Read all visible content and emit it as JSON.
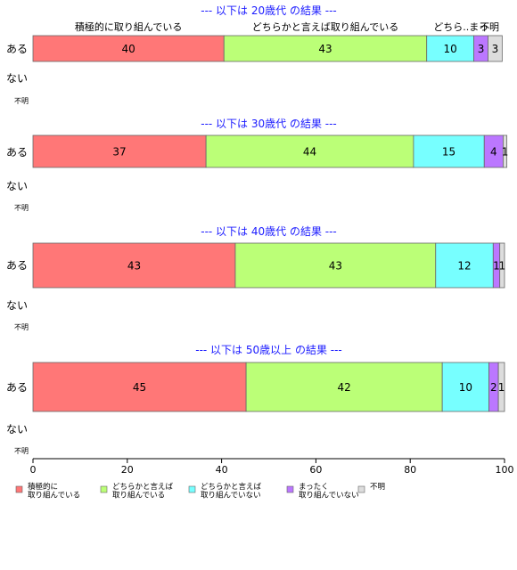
{
  "chart_data": {
    "type": "bar",
    "orientation": "horizontal",
    "stacked": true,
    "xlim": [
      0,
      100
    ],
    "xticks": [
      0,
      20,
      40,
      60,
      80,
      100
    ],
    "top_category_labels": [
      "積極的に取り組んでいる",
      "どちらかと言えば取り組んでいる",
      "どちら..まっ",
      "不明"
    ],
    "legend": {
      "placement": "bottom",
      "entries": [
        {
          "label_lines": [
            "積極的に",
            "取り組んでいる"
          ],
          "color": "#ff7777"
        },
        {
          "label_lines": [
            "どちらかと言えば",
            "取り組んでいる"
          ],
          "color": "#bbff77"
        },
        {
          "label_lines": [
            "どちらかと言えば",
            "取り組んでいない"
          ],
          "color": "#77ffff"
        },
        {
          "label_lines": [
            "まったく",
            "取り組んでいない"
          ],
          "color": "#bb77ff"
        },
        {
          "label_lines": [
            "不明"
          ],
          "color": "#dddddd"
        }
      ]
    },
    "panels": [
      {
        "title": "--- 以下は 20歳代 の結果 ---",
        "rows": [
          {
            "label": "ある",
            "values": [
              40.5,
              43,
              10,
              3,
              3
            ],
            "labels": [
              "40",
              "43",
              "10",
              "3",
              "3"
            ]
          },
          {
            "label": "ない",
            "values": []
          },
          {
            "label": "不明",
            "values": []
          }
        ]
      },
      {
        "title": "--- 以下は 30歳代 の結果 ---",
        "rows": [
          {
            "label": "ある",
            "values": [
              36.7,
              44,
              15,
              4,
              0.8
            ],
            "labels": [
              "37",
              "44",
              "15",
              "4",
              "1"
            ]
          },
          {
            "label": "ない",
            "values": []
          },
          {
            "label": "不明",
            "values": []
          }
        ]
      },
      {
        "title": "--- 以下は 40歳代 の結果 ---",
        "rows": [
          {
            "label": "ある",
            "values": [
              42.9,
              42.5,
              12.2,
              1.4,
              1
            ],
            "labels": [
              "43",
              "43",
              "12",
              "1",
              "1"
            ]
          },
          {
            "label": "ない",
            "values": []
          },
          {
            "label": "不明",
            "values": []
          }
        ]
      },
      {
        "title": "--- 以下は 50歳以上 の結果 ---",
        "rows": [
          {
            "label": "ある",
            "values": [
              45.2,
              41.6,
              9.9,
              2,
              1.3
            ],
            "labels": [
              "45",
              "42",
              "10",
              "2",
              "1"
            ]
          },
          {
            "label": "ない",
            "values": []
          },
          {
            "label": "不明",
            "values": []
          }
        ]
      }
    ]
  }
}
